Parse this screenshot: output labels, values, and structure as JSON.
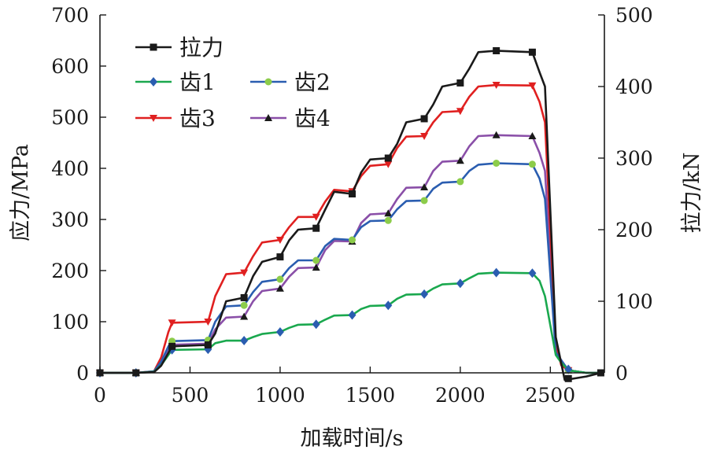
{
  "chart_data": {
    "type": "line",
    "xlabel": "加载时间/s",
    "ylabel_left": "应力/MPa",
    "ylabel_right": "拉力/kN",
    "xlim": [
      0,
      2800
    ],
    "ylim_left": [
      0,
      700
    ],
    "ylim_right": [
      0,
      500
    ],
    "x_ticks": [
      "0",
      "500",
      "1000",
      "1500",
      "2000",
      "2500"
    ],
    "y_left_ticks": [
      "0",
      "100",
      "200",
      "300",
      "400",
      "500",
      "600",
      "700"
    ],
    "y_right_ticks": [
      "0",
      "100",
      "200",
      "300",
      "400",
      "500"
    ],
    "legend_position": "top-left",
    "grid": false,
    "series": [
      {
        "name": "拉力",
        "axis": "right",
        "color": "#1a1a1a",
        "marker": "square",
        "x": [
          0,
          200,
          300,
          340,
          380,
          400,
          600,
          640,
          700,
          800,
          850,
          900,
          1000,
          1050,
          1100,
          1200,
          1250,
          1300,
          1400,
          1450,
          1500,
          1600,
          1650,
          1700,
          1800,
          1850,
          1900,
          2000,
          2050,
          2100,
          2200,
          2400,
          2440,
          2470,
          2530,
          2580,
          2700,
          2780
        ],
        "y": [
          0,
          0,
          1,
          10,
          28,
          37,
          39,
          55,
          100,
          105,
          135,
          155,
          162,
          185,
          200,
          202,
          228,
          253,
          250,
          280,
          298,
          300,
          320,
          350,
          355,
          375,
          400,
          405,
          425,
          448,
          450,
          448,
          420,
          400,
          50,
          -10,
          -5,
          0
        ],
        "marker_x": [
          0,
          200,
          400,
          600,
          800,
          1000,
          1200,
          1400,
          1600,
          1800,
          2000,
          2200,
          2400,
          2600,
          2780
        ],
        "marker_y": [
          0,
          0,
          37,
          39,
          105,
          162,
          202,
          250,
          300,
          355,
          405,
          450,
          448,
          -8,
          0
        ]
      },
      {
        "name": "齿1",
        "axis": "left",
        "color": "#1aa84e",
        "marker_color": "#2a5db0",
        "marker": "diamond",
        "x": [
          0,
          200,
          300,
          340,
          380,
          400,
          600,
          640,
          700,
          800,
          850,
          900,
          1000,
          1050,
          1100,
          1200,
          1250,
          1300,
          1400,
          1450,
          1500,
          1600,
          1650,
          1700,
          1800,
          1850,
          1900,
          2000,
          2050,
          2100,
          2200,
          2400,
          2440,
          2470,
          2530,
          2560,
          2600,
          2700,
          2780
        ],
        "y": [
          0,
          0,
          2,
          15,
          35,
          45,
          46,
          58,
          63,
          63,
          70,
          76,
          80,
          88,
          94,
          95,
          104,
          112,
          113,
          125,
          131,
          132,
          145,
          153,
          154,
          165,
          173,
          175,
          185,
          194,
          196,
          195,
          180,
          150,
          35,
          20,
          5,
          0,
          0
        ],
        "marker_x": [
          0,
          200,
          400,
          600,
          800,
          1000,
          1200,
          1400,
          1600,
          1800,
          2000,
          2200,
          2400,
          2600
        ],
        "marker_y": [
          0,
          0,
          45,
          46,
          63,
          80,
          95,
          113,
          132,
          154,
          175,
          196,
          195,
          7
        ]
      },
      {
        "name": "齿2",
        "axis": "left",
        "color": "#2a5db0",
        "marker_color": "#8ccc4a",
        "marker": "circle",
        "x": [
          0,
          200,
          300,
          340,
          380,
          400,
          600,
          640,
          700,
          800,
          850,
          900,
          1000,
          1050,
          1100,
          1200,
          1250,
          1300,
          1400,
          1450,
          1500,
          1600,
          1650,
          1700,
          1800,
          1850,
          1900,
          2000,
          2050,
          2100,
          2200,
          2400,
          2440,
          2470,
          2530,
          2560,
          2600,
          2700,
          2780
        ],
        "y": [
          0,
          0,
          3,
          22,
          52,
          62,
          64,
          100,
          130,
          132,
          158,
          178,
          183,
          205,
          220,
          220,
          248,
          262,
          260,
          285,
          297,
          298,
          320,
          336,
          337,
          360,
          372,
          374,
          395,
          407,
          410,
          408,
          380,
          340,
          40,
          25,
          5,
          0,
          0
        ],
        "marker_x": [
          0,
          200,
          400,
          600,
          800,
          1000,
          1200,
          1400,
          1600,
          1800,
          2000,
          2200,
          2400,
          2600
        ],
        "marker_y": [
          0,
          0,
          62,
          64,
          132,
          183,
          220,
          260,
          298,
          337,
          374,
          410,
          408,
          5
        ]
      },
      {
        "name": "齿3",
        "axis": "left",
        "color": "#e02020",
        "marker": "triangle-down",
        "x": [
          0,
          200,
          300,
          340,
          380,
          400,
          600,
          640,
          700,
          800,
          850,
          900,
          1000,
          1050,
          1100,
          1200,
          1250,
          1300,
          1400,
          1450,
          1500,
          1600,
          1650,
          1700,
          1800,
          1850,
          1900,
          2000,
          2050,
          2100,
          2200,
          2400,
          2440,
          2470,
          2530,
          2560,
          2600,
          2700,
          2780
        ],
        "y": [
          0,
          0,
          3,
          30,
          80,
          98,
          100,
          150,
          193,
          196,
          228,
          255,
          260,
          285,
          305,
          305,
          335,
          358,
          355,
          385,
          405,
          408,
          440,
          462,
          463,
          490,
          510,
          512,
          540,
          560,
          563,
          562,
          530,
          490,
          60,
          15,
          5,
          0,
          0
        ],
        "marker_x": [
          0,
          200,
          400,
          600,
          800,
          1000,
          1200,
          1400,
          1600,
          1800,
          2000,
          2200,
          2400,
          2600
        ],
        "marker_y": [
          0,
          0,
          98,
          100,
          196,
          260,
          305,
          355,
          408,
          463,
          512,
          563,
          562,
          5
        ]
      },
      {
        "name": "齿4",
        "axis": "left",
        "color": "#8a4fa8",
        "marker_color": "#1a1a1a",
        "marker": "triangle-up",
        "x": [
          0,
          200,
          300,
          340,
          380,
          400,
          600,
          640,
          700,
          800,
          850,
          900,
          1000,
          1050,
          1100,
          1200,
          1250,
          1300,
          1400,
          1450,
          1500,
          1600,
          1650,
          1700,
          1800,
          1850,
          1900,
          2000,
          2050,
          2100,
          2200,
          2400,
          2440,
          2470,
          2530,
          2560,
          2600,
          2700,
          2780
        ],
        "y": [
          0,
          0,
          2,
          18,
          45,
          55,
          57,
          85,
          108,
          110,
          140,
          160,
          165,
          188,
          205,
          206,
          240,
          258,
          257,
          293,
          310,
          312,
          340,
          362,
          363,
          395,
          413,
          415,
          443,
          463,
          465,
          463,
          430,
          395,
          50,
          20,
          5,
          0,
          0
        ],
        "marker_x": [
          0,
          200,
          400,
          600,
          800,
          1000,
          1200,
          1400,
          1600,
          1800,
          2000,
          2200,
          2400,
          2600
        ],
        "marker_y": [
          0,
          0,
          55,
          57,
          110,
          165,
          206,
          257,
          312,
          363,
          415,
          465,
          463,
          5
        ]
      }
    ]
  }
}
